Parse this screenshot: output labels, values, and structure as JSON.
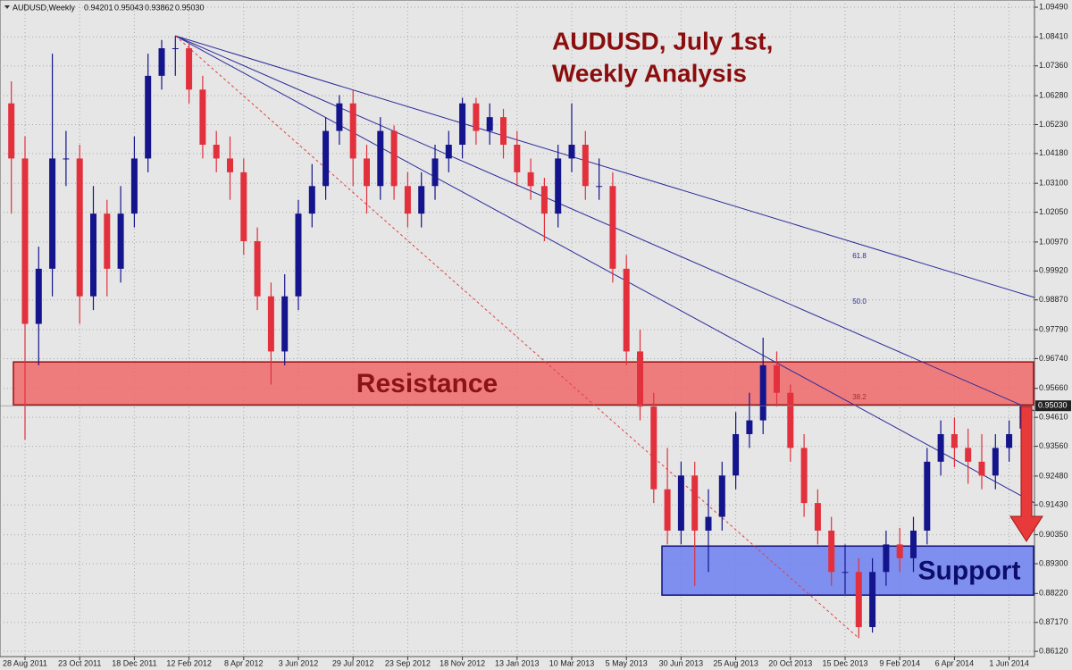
{
  "chart_data": {
    "type": "candlestick",
    "header": {
      "symbol": "AUDUSD,Weekly",
      "ohlc": [
        "0.94201",
        "0.95043",
        "0.93862",
        "0.95030"
      ]
    },
    "title_lines": [
      "AUDUSD, July 1st,",
      "Weekly Analysis"
    ],
    "categories": [
      "28 Aug 2011",
      "23 Oct 2011",
      "18 Dec 2011",
      "12 Feb 2012",
      "8 Apr 2012",
      "3 Jun 2012",
      "29 Jul 2012",
      "23 Sep 2012",
      "18 Nov 2012",
      "13 Jan 2013",
      "10 Mar 2013",
      "5 May 2013",
      "30 Jun 2013",
      "25 Aug 2013",
      "20 Oct 2013",
      "15 Dec 2013",
      "9 Feb 2014",
      "6 Apr 2014",
      "1 Jun 2014"
    ],
    "open": [
      1.06,
      1.04,
      0.98,
      1.0,
      1.04,
      1.04,
      0.99,
      1.02,
      1.0,
      1.02,
      1.04,
      1.07,
      1.08,
      1.08,
      1.065,
      1.045,
      1.04,
      1.035,
      1.01,
      0.99,
      0.97,
      0.99,
      1.02,
      1.03,
      1.05,
      1.06,
      1.04,
      1.03,
      1.05,
      1.03,
      1.02,
      1.03,
      1.04,
      1.045,
      1.06,
      1.05,
      1.055,
      1.045,
      1.035,
      1.03,
      1.02,
      1.04,
      1.045,
      1.03,
      1.03,
      1.0,
      0.97,
      0.95,
      0.92,
      0.905,
      0.925,
      0.905,
      0.91,
      0.925,
      0.94,
      0.945,
      0.965,
      0.955,
      0.935,
      0.915,
      0.905,
      0.89,
      0.89,
      0.87,
      0.89,
      0.9,
      0.895,
      0.905,
      0.93,
      0.94,
      0.935,
      0.93,
      0.925,
      0.935,
      0.94201
    ],
    "high": [
      1.068,
      1.048,
      1.008,
      1.078,
      1.05,
      1.045,
      1.03,
      1.025,
      1.03,
      1.048,
      1.078,
      1.083,
      1.0845,
      1.082,
      1.07,
      1.05,
      1.048,
      1.04,
      1.015,
      0.995,
      0.998,
      1.025,
      1.038,
      1.055,
      1.063,
      1.065,
      1.045,
      1.055,
      1.052,
      1.035,
      1.035,
      1.045,
      1.05,
      1.062,
      1.062,
      1.06,
      1.058,
      1.05,
      1.04,
      1.033,
      1.045,
      1.06,
      1.05,
      1.04,
      1.035,
      1.005,
      0.978,
      0.955,
      0.935,
      0.93,
      0.93,
      0.92,
      0.93,
      0.948,
      0.955,
      0.975,
      0.97,
      0.958,
      0.94,
      0.92,
      0.91,
      0.9,
      0.895,
      0.895,
      0.905,
      0.906,
      0.91,
      0.935,
      0.945,
      0.946,
      0.942,
      0.94,
      0.94,
      0.945,
      0.95043
    ],
    "low": [
      1.02,
      0.938,
      0.965,
      0.99,
      1.03,
      0.98,
      0.985,
      0.99,
      0.995,
      1.015,
      1.035,
      1.065,
      1.07,
      1.06,
      1.04,
      1.035,
      1.025,
      1.005,
      0.985,
      0.958,
      0.965,
      0.985,
      1.015,
      1.025,
      1.045,
      1.03,
      1.02,
      1.025,
      1.025,
      1.015,
      1.015,
      1.025,
      1.035,
      1.04,
      1.045,
      1.045,
      1.04,
      1.03,
      1.025,
      1.01,
      1.015,
      1.035,
      1.025,
      1.025,
      0.995,
      0.965,
      0.945,
      0.915,
      0.9,
      0.9,
      0.885,
      0.89,
      0.905,
      0.92,
      0.935,
      0.94,
      0.95,
      0.93,
      0.91,
      0.9,
      0.885,
      0.882,
      0.866,
      0.868,
      0.885,
      0.89,
      0.89,
      0.9,
      0.925,
      0.928,
      0.922,
      0.92,
      0.92,
      0.93,
      0.93862
    ],
    "close": [
      1.04,
      0.98,
      1.0,
      1.04,
      1.04,
      0.99,
      1.02,
      1.0,
      1.02,
      1.04,
      1.07,
      1.08,
      1.08,
      1.065,
      1.045,
      1.04,
      1.035,
      1.01,
      0.99,
      0.97,
      0.99,
      1.02,
      1.03,
      1.05,
      1.06,
      1.04,
      1.03,
      1.05,
      1.03,
      1.02,
      1.03,
      1.04,
      1.045,
      1.06,
      1.05,
      1.055,
      1.045,
      1.035,
      1.03,
      1.02,
      1.04,
      1.045,
      1.03,
      1.03,
      1.0,
      0.97,
      0.95,
      0.92,
      0.905,
      0.925,
      0.905,
      0.91,
      0.925,
      0.94,
      0.945,
      0.965,
      0.955,
      0.935,
      0.915,
      0.905,
      0.89,
      0.89,
      0.87,
      0.89,
      0.9,
      0.895,
      0.905,
      0.93,
      0.94,
      0.935,
      0.93,
      0.925,
      0.935,
      0.94,
      0.9503
    ],
    "up_color": "#14148c",
    "down_color": "#e2303c",
    "ylim": [
      0.8593,
      1.0975
    ],
    "yticks": [
      {
        "value": 1.0949,
        "label": "1.09490"
      },
      {
        "value": 1.0841,
        "label": "1.08410"
      },
      {
        "value": 1.0736,
        "label": "1.07360"
      },
      {
        "value": 1.0628,
        "label": "1.06280"
      },
      {
        "value": 1.0523,
        "label": "1.05230"
      },
      {
        "value": 1.0418,
        "label": "1.04180"
      },
      {
        "value": 1.031,
        "label": "1.03100"
      },
      {
        "value": 1.0205,
        "label": "1.02050"
      },
      {
        "value": 1.0097,
        "label": "1.00970"
      },
      {
        "value": 0.9992,
        "label": "0.99920"
      },
      {
        "value": 0.9887,
        "label": "0.98870"
      },
      {
        "value": 0.9779,
        "label": "0.97790"
      },
      {
        "value": 0.9674,
        "label": "0.96740"
      },
      {
        "value": 0.9566,
        "label": "0.95660"
      },
      {
        "value": 0.9461,
        "label": "0.94610"
      },
      {
        "value": 0.9356,
        "label": "0.93560"
      },
      {
        "value": 0.9248,
        "label": "0.92480"
      },
      {
        "value": 0.9143,
        "label": "0.91430"
      },
      {
        "value": 0.9035,
        "label": "0.90350"
      },
      {
        "value": 0.893,
        "label": "0.89300"
      },
      {
        "value": 0.8822,
        "label": "0.88220"
      },
      {
        "value": 0.8717,
        "label": "0.87170"
      },
      {
        "value": 0.8612,
        "label": "0.86120"
      }
    ],
    "last_price": {
      "value": 0.9503,
      "label": "0.95030"
    },
    "grid": true,
    "resistance": {
      "label": "Resistance",
      "top": 0.9662,
      "bottom": 0.9506,
      "color": "#f06868"
    },
    "support": {
      "label": "Support",
      "top": 0.8994,
      "bottom": 0.8816,
      "color": "#6b7ff0"
    },
    "fib_fan": [
      "61.8",
      "50.0",
      "38.2"
    ]
  }
}
